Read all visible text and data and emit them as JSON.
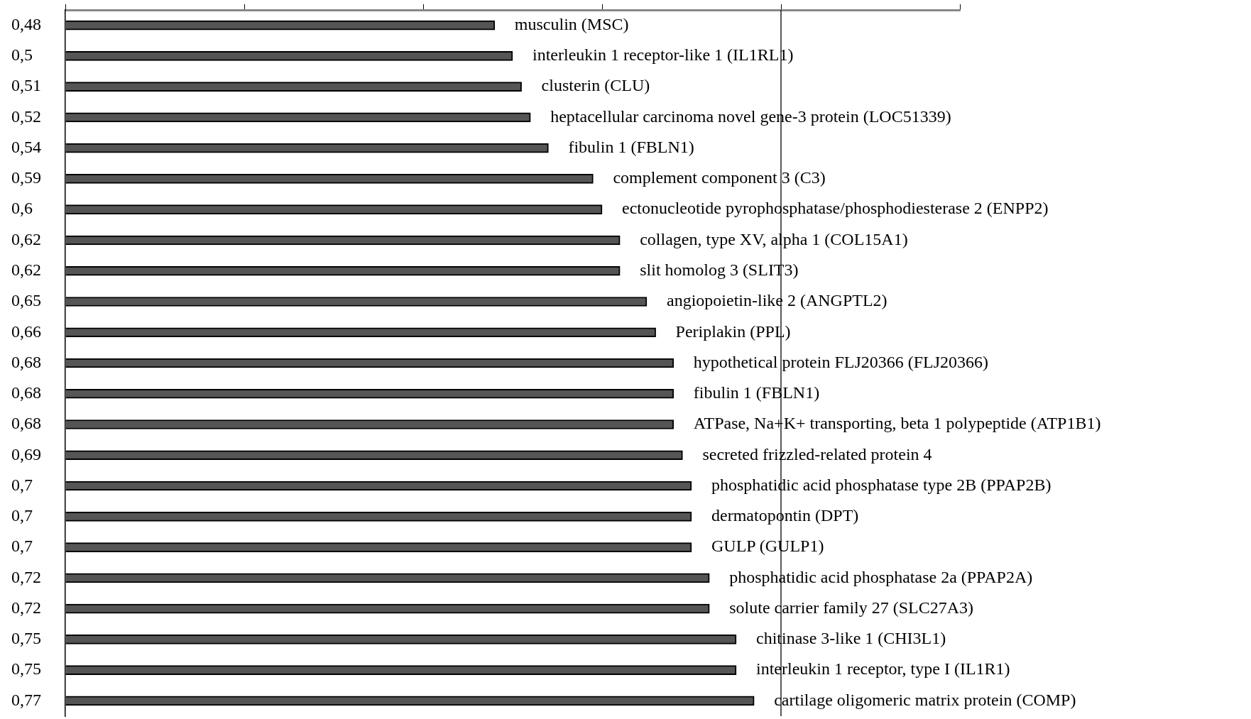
{
  "chart_data": {
    "type": "bar",
    "orientation": "horizontal",
    "categories": [
      "musculin (MSC)",
      "interleukin 1 receptor-like 1 (IL1RL1)",
      "clusterin (CLU)",
      "heptacellular carcinoma novel gene-3 protein (LOC51339)",
      "fibulin 1 (FBLN1)",
      "complement component 3 (C3)",
      "ectonucleotide pyrophosphatase/phosphodiesterase 2 (ENPP2)",
      "collagen, type XV, alpha 1 (COL15A1)",
      "slit homolog 3 (SLIT3)",
      "angiopoietin-like 2 (ANGPTL2)",
      "Periplakin (PPL)",
      "hypothetical protein FLJ20366 (FLJ20366)",
      "fibulin 1 (FBLN1)",
      "ATPase, Na+K+ transporting, beta 1 polypeptide (ATP1B1)",
      "secreted frizzled-related protein 4",
      "phosphatidic acid phosphatase type 2B (PPAP2B)",
      "dermatopontin (DPT)",
      "GULP (GULP1)",
      "phosphatidic acid phosphatase 2a (PPAP2A)",
      "solute carrier family 27 (SLC27A3)",
      "chitinase 3-like 1 (CHI3L1)",
      "interleukin 1 receptor, type I (IL1R1)",
      "cartilage oligomeric matrix protein (COMP)"
    ],
    "values": [
      0.48,
      0.5,
      0.51,
      0.52,
      0.54,
      0.59,
      0.6,
      0.62,
      0.62,
      0.65,
      0.66,
      0.68,
      0.68,
      0.68,
      0.69,
      0.7,
      0.7,
      0.7,
      0.72,
      0.72,
      0.75,
      0.75,
      0.77
    ],
    "value_labels": [
      "0,48",
      "0,5",
      "0,51",
      "0,52",
      "0,54",
      "0,59",
      "0,6",
      "0,62",
      "0,62",
      "0,65",
      "0,66",
      "0,68",
      "0,68",
      "0,68",
      "0,69",
      "0,7",
      "0,7",
      "0,7",
      "0,72",
      "0,72",
      "0,75",
      "0,75",
      "0,77"
    ],
    "color": "#555555",
    "xlim": [
      0,
      1
    ],
    "xticks": [
      {
        "value": 0,
        "label": null
      },
      {
        "value": 0.2,
        "label": null
      },
      {
        "value": 0.4,
        "label": null
      },
      {
        "value": 0.6,
        "label": null
      },
      {
        "value": 0.8,
        "label": null
      },
      {
        "value": 1,
        "label": null
      }
    ],
    "tick_labels": "y",
    "grid": false,
    "legend": false,
    "ref_lines": [
      {
        "axis": "x",
        "value": 0.8,
        "color": "#000000"
      }
    ]
  }
}
